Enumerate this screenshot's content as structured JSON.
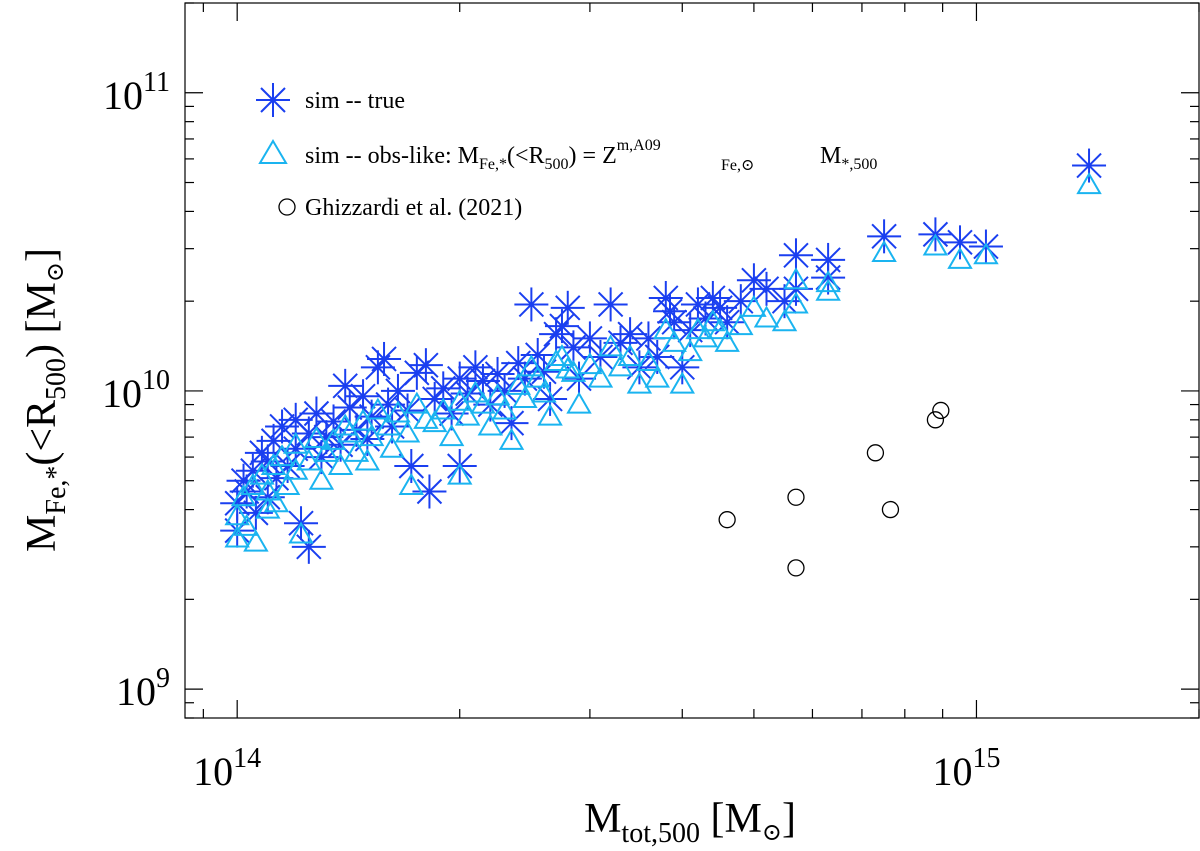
{
  "chart_data": {
    "type": "scatter",
    "xscale": "log",
    "yscale": "log",
    "xlim": [
      85000000000000.0,
      2000000000000000.0
    ],
    "ylim": [
      800000000.0,
      200000000000.0
    ],
    "xaxis_title": {
      "main": "M",
      "sub": "tot,500",
      "unit": " [M",
      "unit_symbol": "⊙",
      "close": "]"
    },
    "yaxis_title": {
      "main": "M",
      "sub1": "Fe,*",
      "paren": "(<R",
      "sub2": "500",
      "unit": ") [M",
      "unit_symbol": "⊙",
      "close": "]"
    },
    "xticks": [
      {
        "value": 100000000000000.0,
        "base": "10",
        "exp": "14"
      },
      {
        "value": 1000000000000000.0,
        "base": "10",
        "exp": "15"
      }
    ],
    "yticks": [
      {
        "value": 1000000000.0,
        "base": "10",
        "exp": "9"
      },
      {
        "value": 10000000000.0,
        "base": "10",
        "exp": "10"
      },
      {
        "value": 100000000000.0,
        "base": "10",
        "exp": "11"
      }
    ],
    "legend": {
      "position": "top-left",
      "entries": [
        {
          "marker": "asterisk",
          "color": "#1a3ff0",
          "label": "sim -- true"
        },
        {
          "marker": "triangle",
          "color": "#1ab4f0",
          "label_a": "sim -- obs-like: M",
          "label_sub1": "Fe,*",
          "label_b": "(<R",
          "label_sub2": "500",
          "label_c": ") = Z",
          "label_sup": "m,A09",
          "label_sub3": "Fe,⊙",
          "label_d": "M",
          "label_sub4": "*,500"
        },
        {
          "marker": "circle",
          "color": "#000000",
          "label": "Ghizzardi et al. (2021)"
        }
      ]
    },
    "series": [
      {
        "name": "sim -- true",
        "marker": "asterisk",
        "color": "#1a3ff0",
        "points": [
          [
            100000000000000.0,
            3400000000.0
          ],
          [
            100000000000000.0,
            4200000000.0
          ],
          [
            102000000000000.0,
            5000000000.0
          ],
          [
            103000000000000.0,
            4600000000.0
          ],
          [
            105000000000000.0,
            5400000000.0
          ],
          [
            106000000000000.0,
            3900000000.0
          ],
          [
            108000000000000.0,
            6200000000.0
          ],
          [
            110000000000000.0,
            5800000000.0
          ],
          [
            110000000000000.0,
            4400000000.0
          ],
          [
            112000000000000.0,
            6800000000.0
          ],
          [
            113000000000000.0,
            5100000000.0
          ],
          [
            115000000000000.0,
            7600000000.0
          ],
          [
            117000000000000.0,
            5600000000.0
          ],
          [
            120000000000000.0,
            6400000000.0
          ],
          [
            120000000000000.0,
            8000000000.0
          ],
          [
            122000000000000.0,
            3600000000.0
          ],
          [
            125000000000000.0,
            3000000000.0
          ],
          [
            125000000000000.0,
            7200000000.0
          ],
          [
            128000000000000.0,
            8400000000.0
          ],
          [
            130000000000000.0,
            6000000000.0
          ],
          [
            132000000000000.0,
            7000000000.0
          ],
          [
            135000000000000.0,
            7900000000.0
          ],
          [
            138000000000000.0,
            6600000000.0
          ],
          [
            140000000000000.0,
            10400000000.0
          ],
          [
            142000000000000.0,
            8800000000.0
          ],
          [
            145000000000000.0,
            7400000000.0
          ],
          [
            148000000000000.0,
            9600000000.0
          ],
          [
            150000000000000.0,
            6900000000.0
          ],
          [
            152000000000000.0,
            8200000000.0
          ],
          [
            155000000000000.0,
            12000000000.0
          ],
          [
            158000000000000.0,
            12800000000.0
          ],
          [
            160000000000000.0,
            9000000000.0
          ],
          [
            162000000000000.0,
            7600000000.0
          ],
          [
            165000000000000.0,
            10000000000.0
          ],
          [
            170000000000000.0,
            8600000000.0
          ],
          [
            172000000000000.0,
            5600000000.0
          ],
          [
            175000000000000.0,
            11500000000.0
          ],
          [
            180000000000000.0,
            12200000000.0
          ],
          [
            182000000000000.0,
            4600000000.0
          ],
          [
            185000000000000.0,
            9400000000.0
          ],
          [
            190000000000000.0,
            10200000000.0
          ],
          [
            195000000000000.0,
            8400000000.0
          ],
          [
            200000000000000.0,
            11000000000.0
          ],
          [
            200000000000000.0,
            5600000000.0
          ],
          [
            205000000000000.0,
            9800000000.0
          ],
          [
            210000000000000.0,
            12000000000.0
          ],
          [
            215000000000000.0,
            10800000000.0
          ],
          [
            220000000000000.0,
            9000000000.0
          ],
          [
            225000000000000.0,
            11400000000.0
          ],
          [
            230000000000000.0,
            10000000000.0
          ],
          [
            235000000000000.0,
            7800000000.0
          ],
          [
            240000000000000.0,
            12400000000.0
          ],
          [
            245000000000000.0,
            11000000000.0
          ],
          [
            250000000000000.0,
            19500000000.0
          ],
          [
            255000000000000.0,
            13200000000.0
          ],
          [
            260000000000000.0,
            11600000000.0
          ],
          [
            265000000000000.0,
            9400000000.0
          ],
          [
            270000000000000.0,
            15500000000.0
          ],
          [
            275000000000000.0,
            16500000000.0
          ],
          [
            280000000000000.0,
            19000000000.0
          ],
          [
            285000000000000.0,
            14000000000.0
          ],
          [
            290000000000000.0,
            11000000000.0
          ],
          [
            300000000000000.0,
            15000000000.0
          ],
          [
            310000000000000.0,
            13000000000.0
          ],
          [
            320000000000000.0,
            19500000000.0
          ],
          [
            330000000000000.0,
            14500000000.0
          ],
          [
            340000000000000.0,
            15500000000.0
          ],
          [
            350000000000000.0,
            12000000000.0
          ],
          [
            360000000000000.0,
            15000000000.0
          ],
          [
            370000000000000.0,
            13000000000.0
          ],
          [
            380000000000000.0,
            20500000000.0
          ],
          [
            385000000000000.0,
            18500000000.0
          ],
          [
            390000000000000.0,
            17000000000.0
          ],
          [
            400000000000000.0,
            12000000000.0
          ],
          [
            410000000000000.0,
            16000000000.0
          ],
          [
            420000000000000.0,
            19500000000.0
          ],
          [
            430000000000000.0,
            17500000000.0
          ],
          [
            440000000000000.0,
            20500000000.0
          ],
          [
            450000000000000.0,
            19000000000.0
          ],
          [
            460000000000000.0,
            17000000000.0
          ],
          [
            480000000000000.0,
            20000000000.0
          ],
          [
            500000000000000.0,
            23500000000.0
          ],
          [
            520000000000000.0,
            22000000000.0
          ],
          [
            550000000000000.0,
            20000000000.0
          ],
          [
            570000000000000.0,
            28500000000.0
          ],
          [
            570000000000000.0,
            22000000000.0
          ],
          [
            630000000000000.0,
            27500000000.0
          ],
          [
            630000000000000.0,
            24000000000.0
          ],
          [
            750000000000000.0,
            33000000000.0
          ],
          [
            880000000000000.0,
            33500000000.0
          ],
          [
            950000000000000.0,
            31500000000.0
          ],
          [
            1030000000000000.0,
            30500000000.0
          ],
          [
            1420000000000000.0,
            57000000000.0
          ]
        ]
      },
      {
        "name": "sim -- obs-like",
        "marker": "triangle",
        "color": "#1ab4f0",
        "points": [
          [
            100000000000000.0,
            3200000000.0
          ],
          [
            100000000000000.0,
            3800000000.0
          ],
          [
            102000000000000.0,
            4400000000.0
          ],
          [
            103000000000000.0,
            3500000000.0
          ],
          [
            105000000000000.0,
            4800000000.0
          ],
          [
            106000000000000.0,
            3100000000.0
          ],
          [
            108000000000000.0,
            5200000000.0
          ],
          [
            110000000000000.0,
            4000000000.0
          ],
          [
            110000000000000.0,
            4600000000.0
          ],
          [
            112000000000000.0,
            5600000000.0
          ],
          [
            113000000000000.0,
            4200000000.0
          ],
          [
            115000000000000.0,
            6000000000.0
          ],
          [
            117000000000000.0,
            4800000000.0
          ],
          [
            120000000000000.0,
            5400000000.0
          ],
          [
            120000000000000.0,
            6600000000.0
          ],
          [
            122000000000000.0,
            3300000000.0
          ],
          [
            125000000000000.0,
            5800000000.0
          ],
          [
            128000000000000.0,
            6900000000.0
          ],
          [
            130000000000000.0,
            5000000000.0
          ],
          [
            132000000000000.0,
            6200000000.0
          ],
          [
            135000000000000.0,
            6800000000.0
          ],
          [
            138000000000000.0,
            5600000000.0
          ],
          [
            140000000000000.0,
            7600000000.0
          ],
          [
            142000000000000.0,
            7200000000.0
          ],
          [
            145000000000000.0,
            6200000000.0
          ],
          [
            148000000000000.0,
            7900000000.0
          ],
          [
            150000000000000.0,
            5800000000.0
          ],
          [
            152000000000000.0,
            7000000000.0
          ],
          [
            155000000000000.0,
            8600000000.0
          ],
          [
            160000000000000.0,
            7600000000.0
          ],
          [
            162000000000000.0,
            6400000000.0
          ],
          [
            165000000000000.0,
            8400000000.0
          ],
          [
            170000000000000.0,
            7200000000.0
          ],
          [
            172000000000000.0,
            4800000000.0
          ],
          [
            175000000000000.0,
            9000000000.0
          ],
          [
            180000000000000.0,
            8000000000.0
          ],
          [
            185000000000000.0,
            7800000000.0
          ],
          [
            190000000000000.0,
            8600000000.0
          ],
          [
            195000000000000.0,
            7000000000.0
          ],
          [
            200000000000000.0,
            9200000000.0
          ],
          [
            200000000000000.0,
            5200000000.0
          ],
          [
            205000000000000.0,
            8200000000.0
          ],
          [
            210000000000000.0,
            9800000000.0
          ],
          [
            215000000000000.0,
            9000000000.0
          ],
          [
            220000000000000.0,
            7600000000.0
          ],
          [
            225000000000000.0,
            9600000000.0
          ],
          [
            230000000000000.0,
            8600000000.0
          ],
          [
            235000000000000.0,
            6800000000.0
          ],
          [
            240000000000000.0,
            10400000000.0
          ],
          [
            245000000000000.0,
            9400000000.0
          ],
          [
            250000000000000.0,
            12000000000.0
          ],
          [
            255000000000000.0,
            11000000000.0
          ],
          [
            260000000000000.0,
            9800000000.0
          ],
          [
            265000000000000.0,
            8200000000.0
          ],
          [
            270000000000000.0,
            12500000000.0
          ],
          [
            275000000000000.0,
            13000000000.0
          ],
          [
            280000000000000.0,
            11800000000.0
          ],
          [
            285000000000000.0,
            11500000000.0
          ],
          [
            290000000000000.0,
            9000000000.0
          ],
          [
            300000000000000.0,
            12200000000.0
          ],
          [
            310000000000000.0,
            11000000000.0
          ],
          [
            320000000000000.0,
            14000000000.0
          ],
          [
            330000000000000.0,
            12000000000.0
          ],
          [
            340000000000000.0,
            13000000000.0
          ],
          [
            350000000000000.0,
            10500000000.0
          ],
          [
            360000000000000.0,
            12500000000.0
          ],
          [
            370000000000000.0,
            11000000000.0
          ],
          [
            380000000000000.0,
            16000000000.0
          ],
          [
            390000000000000.0,
            14500000000.0
          ],
          [
            400000000000000.0,
            10500000000.0
          ],
          [
            410000000000000.0,
            13500000000.0
          ],
          [
            420000000000000.0,
            16000000000.0
          ],
          [
            430000000000000.0,
            15000000000.0
          ],
          [
            440000000000000.0,
            17000000000.0
          ],
          [
            450000000000000.0,
            16000000000.0
          ],
          [
            460000000000000.0,
            14500000000.0
          ],
          [
            480000000000000.0,
            16500000000.0
          ],
          [
            500000000000000.0,
            19000000000.0
          ],
          [
            520000000000000.0,
            17500000000.0
          ],
          [
            550000000000000.0,
            17000000000.0
          ],
          [
            570000000000000.0,
            23500000000.0
          ],
          [
            570000000000000.0,
            19500000000.0
          ],
          [
            630000000000000.0,
            21500000000.0
          ],
          [
            630000000000000.0,
            23000000000.0
          ],
          [
            750000000000000.0,
            29000000000.0
          ],
          [
            880000000000000.0,
            30500000000.0
          ],
          [
            950000000000000.0,
            27500000000.0
          ],
          [
            1030000000000000.0,
            28500000000.0
          ],
          [
            1420000000000000.0,
            49000000000.0
          ]
        ]
      },
      {
        "name": "Ghizzardi et al. (2021)",
        "marker": "circle",
        "color": "#000000",
        "points": [
          [
            460000000000000.0,
            3700000000.0
          ],
          [
            570000000000000.0,
            4400000000.0
          ],
          [
            570000000000000.0,
            2550000000.0
          ],
          [
            730000000000000.0,
            6200000000.0
          ],
          [
            765000000000000.0,
            4000000000.0
          ],
          [
            880000000000000.0,
            8000000000.0
          ],
          [
            895000000000000.0,
            8600000000.0
          ]
        ]
      }
    ]
  }
}
